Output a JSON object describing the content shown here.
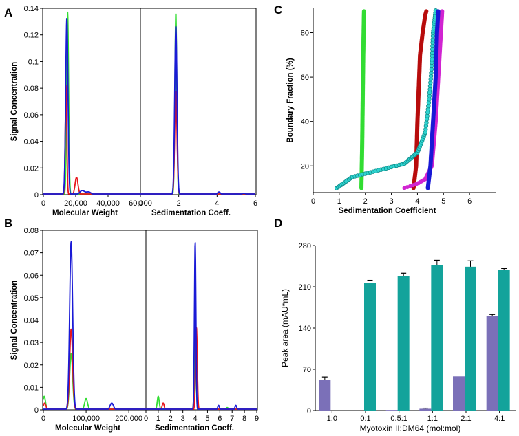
{
  "colors": {
    "red": "#e8151b",
    "green": "#33dd33",
    "blue": "#1a1ad6",
    "cyan": "#2ed4d0",
    "magenta": "#d124d1",
    "darkred": "#b80d0d",
    "purple": "#7b70b8",
    "teal": "#13a39b"
  },
  "chart_data": [
    {
      "type": "line",
      "panel": "A",
      "ylabel": "Signal Concentration",
      "ylim": [
        0,
        0.14
      ],
      "yticks": [
        "0",
        "0.02",
        "0.04",
        "0.06",
        "0.08",
        "0.1",
        "0.12",
        "0.14"
      ],
      "subplots": [
        {
          "xlabel": "Molecular Weight",
          "xlim": [
            0,
            60000
          ],
          "xticks": [
            "0",
            "20,000",
            "40,000",
            "60,000"
          ],
          "series": [
            {
              "name": "red",
              "peaks": [
                [
                  14000,
                  0.082,
                  500
                ],
                [
                  20500,
                  0.013,
                  900
                ]
              ]
            },
            {
              "name": "green",
              "peaks": [
                [
                  15000,
                  0.137,
                  600
                ]
              ]
            },
            {
              "name": "blue",
              "peaks": [
                [
                  14500,
                  0.133,
                  700
                ],
                [
                  24000,
                  0.003,
                  1500
                ],
                [
                  28000,
                  0.002,
                  1500
                ]
              ]
            }
          ]
        },
        {
          "xlabel": "Sedimentation Coeff.",
          "xlim": [
            0,
            6
          ],
          "xticks": [
            "0",
            "2",
            "4",
            "6"
          ],
          "series": [
            {
              "name": "red",
              "peaks": [
                [
                  1.85,
                  0.078,
                  0.06
                ],
                [
                  5.0,
                  0.001,
                  0.1
                ]
              ]
            },
            {
              "name": "green",
              "peaks": [
                [
                  1.85,
                  0.137,
                  0.05
                ]
              ]
            },
            {
              "name": "blue",
              "peaks": [
                [
                  1.85,
                  0.127,
                  0.06
                ],
                [
                  4.1,
                  0.002,
                  0.08
                ],
                [
                  5.4,
                  0.001,
                  0.1
                ]
              ]
            }
          ]
        }
      ]
    },
    {
      "type": "line",
      "panel": "B",
      "ylabel": "Signal Concentration",
      "ylim": [
        0,
        0.08
      ],
      "yticks": [
        "0",
        "0.01",
        "0.02",
        "0.03",
        "0.04",
        "0.05",
        "0.06",
        "0.07",
        "0.08"
      ],
      "subplots": [
        {
          "xlabel": "Molecular Weight",
          "xlim": [
            0,
            240000
          ],
          "xticks": [
            "0",
            "100,000",
            "200,000"
          ],
          "series": [
            {
              "name": "red",
              "peaks": [
                [
                  3000,
                  0.003,
                  3000
                ],
                [
                  65000,
                  0.036,
                  3500
                ]
              ]
            },
            {
              "name": "green",
              "peaks": [
                [
                  2000,
                  0.006,
                  3000
                ],
                [
                  65000,
                  0.025,
                  3500
                ],
                [
                  100000,
                  0.005,
                  3500
                ]
              ]
            },
            {
              "name": "blue",
              "peaks": [
                [
                  65000,
                  0.075,
                  3500
                ],
                [
                  160000,
                  0.003,
                  4000
                ]
              ]
            }
          ]
        },
        {
          "xlabel": "Sedimentation Coeff.",
          "xlim": [
            0,
            9
          ],
          "xticks": [
            "0",
            "1",
            "2",
            "3",
            "4",
            "5",
            "6",
            "7",
            "8",
            "9"
          ],
          "series": [
            {
              "name": "red",
              "peaks": [
                [
                  1.4,
                  0.003,
                  0.08
                ],
                [
                  4.1,
                  0.037,
                  0.07
                ]
              ]
            },
            {
              "name": "green",
              "peaks": [
                [
                  1.0,
                  0.006,
                  0.08
                ],
                [
                  4.0,
                  0.03,
                  0.07
                ],
                [
                  6.6,
                  0.001,
                  0.1
                ]
              ]
            },
            {
              "name": "blue",
              "peaks": [
                [
                  4.0,
                  0.075,
                  0.06
                ],
                [
                  5.9,
                  0.002,
                  0.07
                ],
                [
                  7.3,
                  0.002,
                  0.07
                ]
              ]
            }
          ]
        }
      ]
    },
    {
      "type": "scatter",
      "panel": "C",
      "xlabel": "Sedimentation Coefficient",
      "ylabel": "Boundary Fraction (%)",
      "xlim": [
        0,
        7
      ],
      "ylim": [
        8,
        91
      ],
      "xticks": [
        "0",
        "1",
        "2",
        "3",
        "4",
        "5",
        "6"
      ],
      "yticks": [
        "20",
        "40",
        "60",
        "80"
      ],
      "series": [
        {
          "name": "green",
          "points": [
            [
              1.85,
              10
            ],
            [
              1.88,
              30
            ],
            [
              1.9,
              50
            ],
            [
              1.92,
              70
            ],
            [
              1.95,
              90
            ]
          ]
        },
        {
          "name": "darkred",
          "points": [
            [
              3.85,
              10
            ],
            [
              3.95,
              20
            ],
            [
              4.0,
              40
            ],
            [
              4.05,
              55
            ],
            [
              4.1,
              70
            ],
            [
              4.2,
              80
            ],
            [
              4.3,
              88
            ],
            [
              4.35,
              90
            ]
          ]
        },
        {
          "name": "cyan",
          "points": [
            [
              0.9,
              10
            ],
            [
              1.5,
              15
            ],
            [
              2.5,
              18
            ],
            [
              3.5,
              21
            ],
            [
              4.0,
              26
            ],
            [
              4.3,
              35
            ],
            [
              4.45,
              50
            ],
            [
              4.55,
              65
            ],
            [
              4.6,
              80
            ],
            [
              4.7,
              90
            ]
          ]
        },
        {
          "name": "magenta",
          "points": [
            [
              3.5,
              10
            ],
            [
              4.0,
              12
            ],
            [
              4.3,
              14
            ],
            [
              4.55,
              20
            ],
            [
              4.7,
              40
            ],
            [
              4.8,
              60
            ],
            [
              4.9,
              80
            ],
            [
              4.95,
              90
            ]
          ]
        },
        {
          "name": "blue",
          "points": [
            [
              4.4,
              10
            ],
            [
              4.5,
              20
            ],
            [
              4.6,
              40
            ],
            [
              4.7,
              60
            ],
            [
              4.75,
              80
            ],
            [
              4.8,
              90
            ]
          ]
        }
      ]
    },
    {
      "type": "bar",
      "panel": "D",
      "xlabel": "Myotoxin II:DM64 (mol:mol)",
      "ylabel": "Peak area (mAU*mL)",
      "ylim": [
        0,
        280
      ],
      "yticks": [
        "0",
        "70",
        "140",
        "210",
        "280"
      ],
      "categories": [
        "1:0",
        "0:1",
        "0.5:1",
        "1:1",
        "2:1",
        "4:1"
      ],
      "series": [
        {
          "name": "purple",
          "values": [
            52,
            0,
            1,
            3,
            58,
            160
          ],
          "errors": [
            5,
            0,
            0,
            1,
            0,
            3
          ]
        },
        {
          "name": "teal",
          "values": [
            0,
            216,
            228,
            247,
            244,
            238
          ],
          "errors": [
            0,
            5,
            5,
            8,
            10,
            3
          ]
        }
      ]
    }
  ]
}
